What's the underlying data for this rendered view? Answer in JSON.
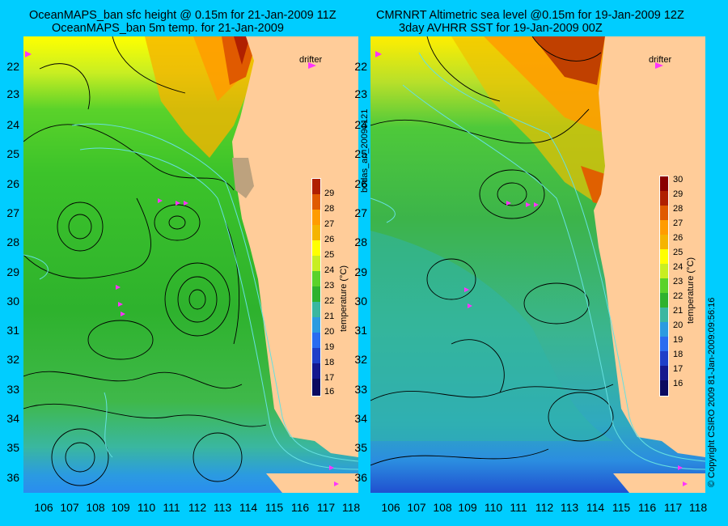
{
  "panels": [
    {
      "title_line1": "OceanMAPS_ban sfc height @ 0.15m for 21-Jan-2009 11Z",
      "title_line2": "OceanMAPS_ban 5m temp. for 21-Jan-2009"
    },
    {
      "title_line1": "CMRNRT Altimetric sea level  @0.15m  for 19-Jan-2009 12Z",
      "title_line2": "3day AVHRR SST for 19-Jan-2009 00Z"
    }
  ],
  "drifter_label": "drifter",
  "lat_ticks": [
    "22",
    "23",
    "24",
    "25",
    "26",
    "27",
    "28",
    "29",
    "30",
    "31",
    "32",
    "33",
    "34",
    "35",
    "36"
  ],
  "lon_ticks": [
    "106",
    "107",
    "108",
    "109",
    "110",
    "111",
    "112",
    "113",
    "114",
    "115",
    "116",
    "117",
    "118"
  ],
  "left_colorbar": {
    "ticks": [
      "29",
      "28",
      "27",
      "26",
      "25",
      "24",
      "23",
      "22",
      "21",
      "20",
      "19",
      "18",
      "17",
      "16"
    ],
    "label": "temperature (°C)"
  },
  "right_colorbar": {
    "ticks": [
      "30",
      "29",
      "28",
      "27",
      "26",
      "25",
      "24",
      "23",
      "22",
      "21",
      "20",
      "19",
      "18",
      "17",
      "16"
    ],
    "label": "temperature (°C)"
  },
  "middle_vertical_text": "bodas_an_20090121",
  "right_vertical_text": "© Copyright CSIRO 2009   81-Jan-2009:09:56:16",
  "colors": {
    "background": "#00cdff",
    "land": "#ffcc99",
    "drifter": "#ff33ff",
    "contour": "#000000",
    "bathymetry": "#66e0e0"
  }
}
